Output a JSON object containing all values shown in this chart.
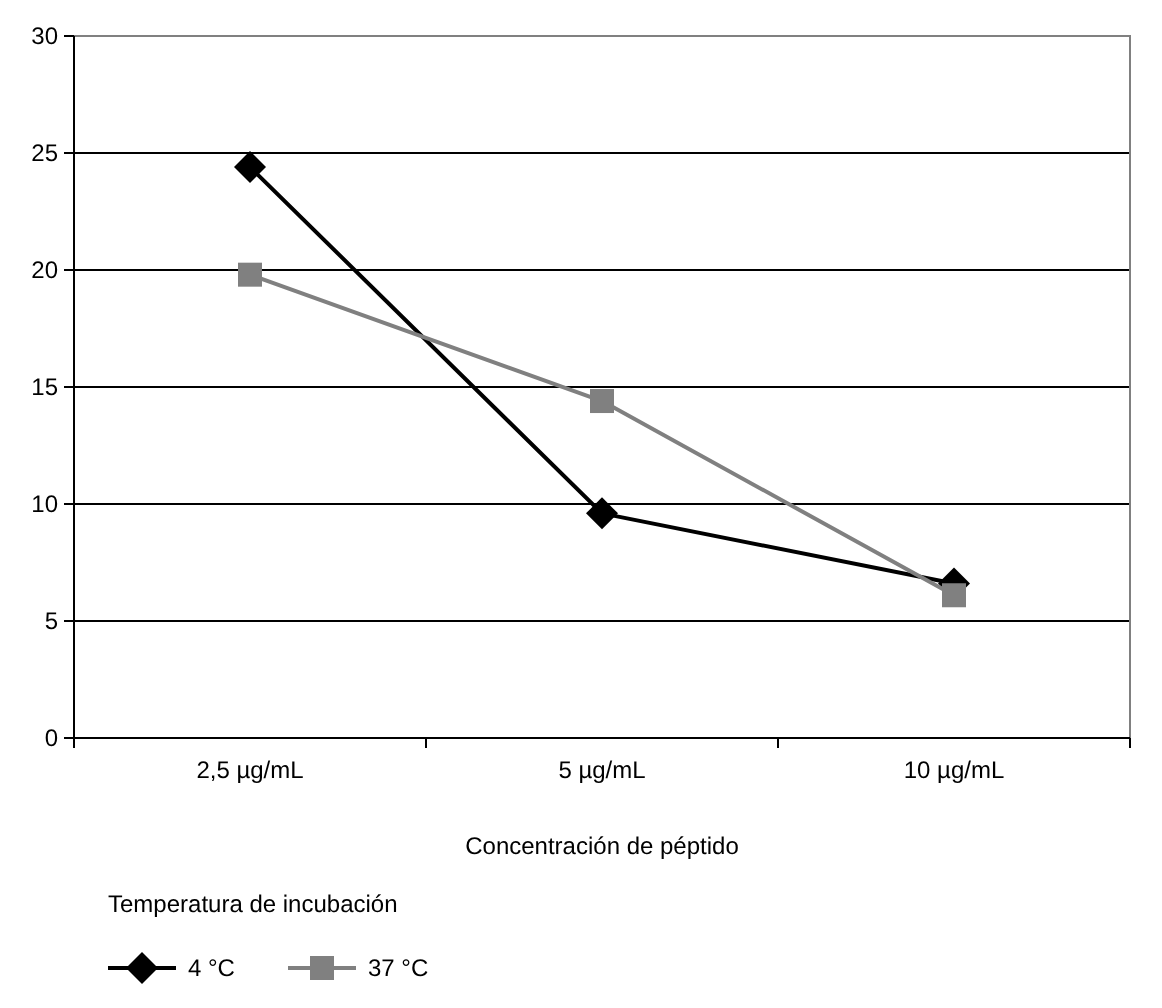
{
  "chart_data": {
    "type": "line",
    "xlabel": "Concentración de péptido",
    "legend_title": "Temperatura de incubación",
    "categories": [
      "2,5 µg/mL",
      "5 µg/mL",
      "10 µg/mL"
    ],
    "series": [
      {
        "name": "4 °C",
        "color": "#000000",
        "marker": "diamond",
        "values": [
          24.4,
          9.6,
          6.6
        ]
      },
      {
        "name": "37 °C",
        "color": "#808080",
        "marker": "square",
        "values": [
          19.8,
          14.4,
          6.1
        ]
      }
    ],
    "ylim": [
      0,
      30
    ],
    "yticks": [
      0,
      5,
      10,
      15,
      20,
      25,
      30
    ],
    "grid": "y",
    "legend": "bottom"
  }
}
